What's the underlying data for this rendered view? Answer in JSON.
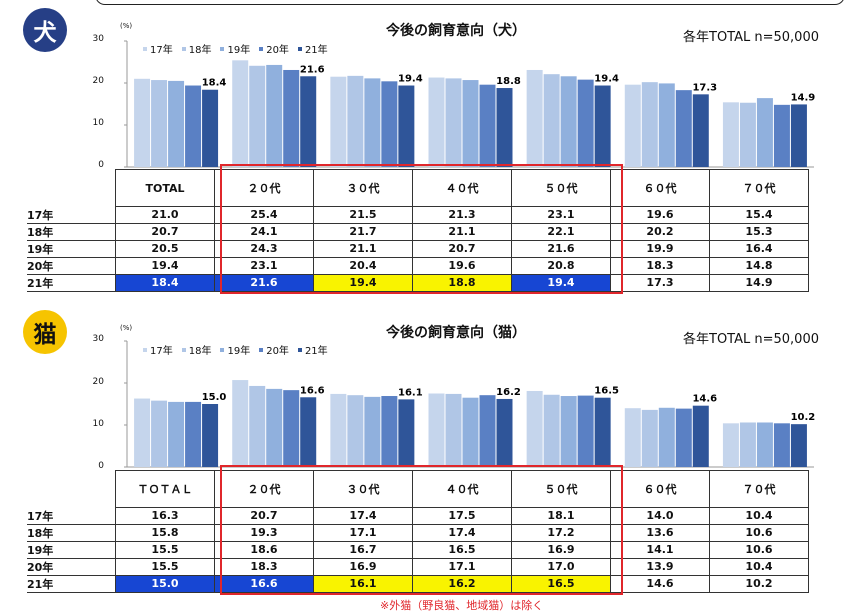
{
  "dog": {
    "badge": "犬",
    "title": "今後の飼育意向（犬）",
    "sample": "各年TOTAL n=50,000",
    "unit": "(%)",
    "legend": [
      "17年",
      "18年",
      "19年",
      "20年",
      "21年"
    ],
    "yticks": [
      "30",
      "20",
      "10",
      "0"
    ],
    "columns": [
      "TOTAL",
      "２０代",
      "３０代",
      "４０代",
      "５０代",
      "６０代",
      "７０代"
    ],
    "rows": [
      {
        "label": "17年",
        "values": [
          "21.0",
          "25.4",
          "21.5",
          "21.3",
          "23.1",
          "19.6",
          "15.4"
        ]
      },
      {
        "label": "18年",
        "values": [
          "20.7",
          "24.1",
          "21.7",
          "21.1",
          "22.1",
          "20.2",
          "15.3"
        ]
      },
      {
        "label": "19年",
        "values": [
          "20.5",
          "24.3",
          "21.1",
          "20.7",
          "21.6",
          "19.9",
          "16.4"
        ]
      },
      {
        "label": "20年",
        "values": [
          "19.4",
          "23.1",
          "20.4",
          "19.6",
          "20.8",
          "18.3",
          "14.8"
        ]
      },
      {
        "label": "21年",
        "values": [
          "18.4",
          "21.6",
          "19.4",
          "18.8",
          "19.4",
          "17.3",
          "14.9"
        ]
      }
    ],
    "highlight_21": [
      "blue",
      "blue",
      "yellow",
      "yellow",
      "blue",
      "none",
      "none"
    ]
  },
  "cat": {
    "badge": "猫",
    "title": "今後の飼育意向（猫）",
    "sample": "各年TOTAL n=50,000",
    "unit": "(%)",
    "legend": [
      "17年",
      "18年",
      "19年",
      "20年",
      "21年"
    ],
    "yticks": [
      "30",
      "20",
      "10",
      "0"
    ],
    "columns": [
      "ＴＯＴＡＬ",
      "２０代",
      "３０代",
      "４０代",
      "５０代",
      "６０代",
      "７０代"
    ],
    "rows": [
      {
        "label": "17年",
        "values": [
          "16.3",
          "20.7",
          "17.4",
          "17.5",
          "18.1",
          "14.0",
          "10.4"
        ]
      },
      {
        "label": "18年",
        "values": [
          "15.8",
          "19.3",
          "17.1",
          "17.4",
          "17.2",
          "13.6",
          "10.6"
        ]
      },
      {
        "label": "19年",
        "values": [
          "15.5",
          "18.6",
          "16.7",
          "16.5",
          "16.9",
          "14.1",
          "10.6"
        ]
      },
      {
        "label": "20年",
        "values": [
          "15.5",
          "18.3",
          "16.9",
          "17.1",
          "17.0",
          "13.9",
          "10.4"
        ]
      },
      {
        "label": "21年",
        "values": [
          "15.0",
          "16.6",
          "16.1",
          "16.2",
          "16.5",
          "14.6",
          "10.2"
        ]
      }
    ],
    "highlight_21": [
      "blue",
      "blue",
      "yellow",
      "yellow",
      "yellow",
      "none",
      "none"
    ]
  },
  "note": "※外猫（野良猫、地域猫）は除く",
  "colors": {
    "series": [
      "#c5d5ec",
      "#b0c6e6",
      "#90b0dd",
      "#5a80c4",
      "#2f5599"
    ],
    "red": "#e0262b",
    "hl_blue": "#1746d3",
    "hl_yellow": "#f9f300"
  },
  "chart_data": [
    {
      "type": "bar",
      "title": "今後の飼育意向（犬）",
      "ylabel": "(%)",
      "ylim": [
        0,
        30
      ],
      "categories": [
        "TOTAL",
        "２０代",
        "３０代",
        "４０代",
        "５０代",
        "６０代",
        "７０代"
      ],
      "series": [
        {
          "name": "17年",
          "values": [
            21.0,
            25.4,
            21.5,
            21.3,
            23.1,
            19.6,
            15.4
          ]
        },
        {
          "name": "18年",
          "values": [
            20.7,
            24.1,
            21.7,
            21.1,
            22.1,
            20.2,
            15.3
          ]
        },
        {
          "name": "19年",
          "values": [
            20.5,
            24.3,
            21.1,
            20.7,
            21.6,
            19.9,
            16.4
          ]
        },
        {
          "name": "20年",
          "values": [
            19.4,
            23.1,
            20.4,
            19.6,
            20.8,
            18.3,
            14.8
          ]
        },
        {
          "name": "21年",
          "values": [
            18.4,
            21.6,
            19.4,
            18.8,
            19.4,
            17.3,
            14.9
          ]
        }
      ]
    },
    {
      "type": "bar",
      "title": "今後の飼育意向（猫）",
      "ylabel": "(%)",
      "ylim": [
        0,
        30
      ],
      "categories": [
        "ＴＯＴＡＬ",
        "２０代",
        "３０代",
        "４０代",
        "５０代",
        "６０代",
        "７０代"
      ],
      "series": [
        {
          "name": "17年",
          "values": [
            16.3,
            20.7,
            17.4,
            17.5,
            18.1,
            14.0,
            10.4
          ]
        },
        {
          "name": "18年",
          "values": [
            15.8,
            19.3,
            17.1,
            17.4,
            17.2,
            13.6,
            10.6
          ]
        },
        {
          "name": "19年",
          "values": [
            15.5,
            18.6,
            16.7,
            16.5,
            16.9,
            14.1,
            10.6
          ]
        },
        {
          "name": "20年",
          "values": [
            15.5,
            18.3,
            16.9,
            17.1,
            17.0,
            13.9,
            10.4
          ]
        },
        {
          "name": "21年",
          "values": [
            15.0,
            16.6,
            16.1,
            16.2,
            16.5,
            14.6,
            10.2
          ]
        }
      ]
    }
  ]
}
